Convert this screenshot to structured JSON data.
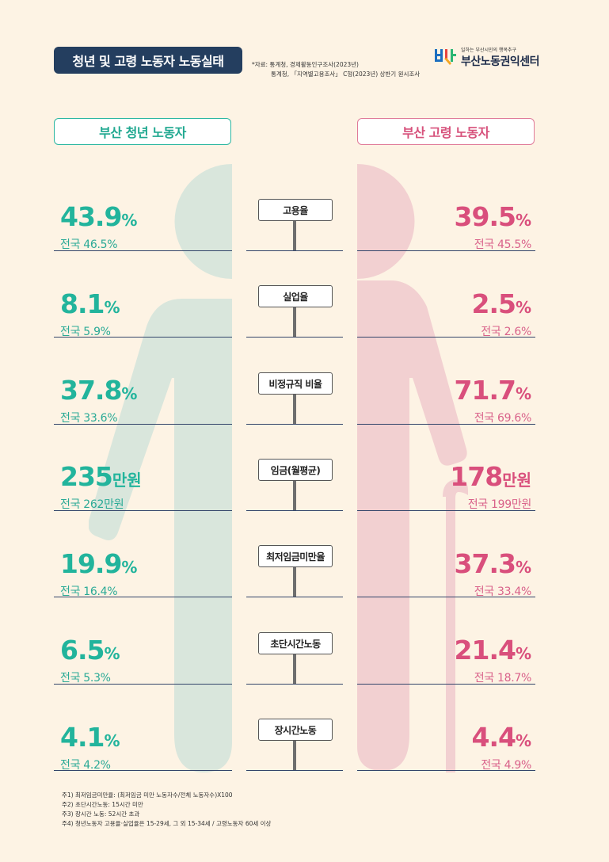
{
  "header": {
    "title": "청년 및 고령 노동자 노동실태",
    "source_line1": "*자료: 통계청, 경제활동인구조사(2023년)",
    "source_line2": "통계청, 「지역별고용조사」 C형(2023년) 상반기 원시조사",
    "logo_tagline": "일하는 부산시민의 행복추구",
    "logo_name": "부산노동권익센터"
  },
  "youth": {
    "label": "부산 청년 노동자",
    "color": "#22b49c",
    "stats": [
      {
        "value": "43.9",
        "unit": "%",
        "national": "전국 46.5%"
      },
      {
        "value": "8.1",
        "unit": "%",
        "national": "전국 5.9%"
      },
      {
        "value": "37.8",
        "unit": "%",
        "national": "전국 33.6%"
      },
      {
        "value": "235",
        "unit": "만원",
        "national": "전국 262만원"
      },
      {
        "value": "19.9",
        "unit": "%",
        "national": "전국 16.4%"
      },
      {
        "value": "6.5",
        "unit": "%",
        "national": "전국 5.3%"
      },
      {
        "value": "4.1",
        "unit": "%",
        "national": "전국 4.2%"
      }
    ]
  },
  "elder": {
    "label": "부산 고령 노동자",
    "color": "#d94f7c",
    "stats": [
      {
        "value": "39.5",
        "unit": "%",
        "national": "전국 45.5%"
      },
      {
        "value": "2.5",
        "unit": "%",
        "national": "전국 2.6%"
      },
      {
        "value": "71.7",
        "unit": "%",
        "national": "전국 69.6%"
      },
      {
        "value": "178",
        "unit": "만원",
        "national": "전국 199만원"
      },
      {
        "value": "37.3",
        "unit": "%",
        "national": "전국 33.4%"
      },
      {
        "value": "21.4",
        "unit": "%",
        "national": "전국 18.7%"
      },
      {
        "value": "4.4",
        "unit": "%",
        "national": "전국 4.9%"
      }
    ]
  },
  "categories": [
    "고용율",
    "실업율",
    "비정규직 비율",
    "임금(월평균)",
    "최저임금미만율",
    "초단시간노동",
    "장시간노동"
  ],
  "notes": [
    "주1) 최저임금미만율: (최저임금 미만 노동자수/전체 노동자수)X100",
    "주2) 초단시간노동: 15시간 미만",
    "주3) 장시간 노동: 52시간 초과",
    "주4) 청년노동자 고용율·실업율은 15-29세, 그 외 15-34세 / 고령노동자 60세 이상"
  ]
}
